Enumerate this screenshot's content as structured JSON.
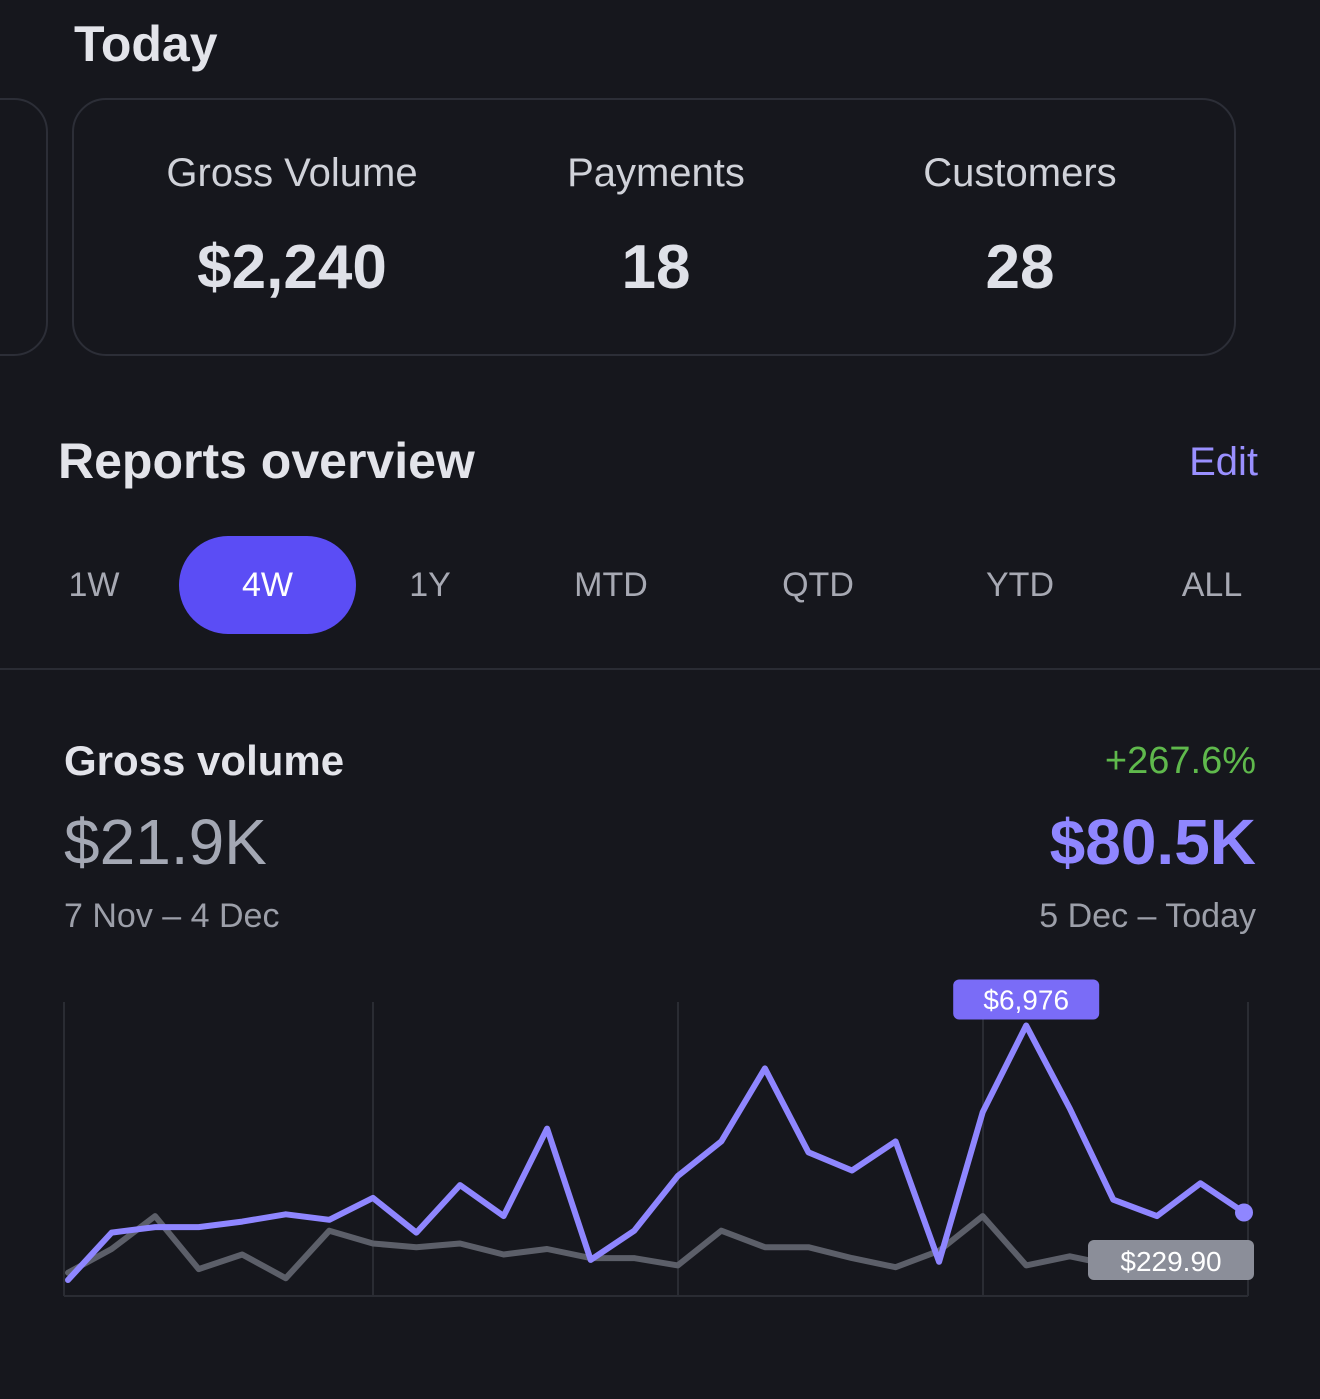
{
  "today": {
    "title": "Today",
    "stats": [
      {
        "label": "Gross Volume",
        "value": "$2,240"
      },
      {
        "label": "Payments",
        "value": "18"
      },
      {
        "label": "Customers",
        "value": "28"
      }
    ]
  },
  "reports": {
    "title": "Reports overview",
    "edit_label": "Edit",
    "ranges": [
      "1W",
      "4W",
      "1Y",
      "MTD",
      "QTD",
      "YTD",
      "ALL"
    ],
    "active_range": "4W"
  },
  "gross_volume": {
    "title": "Gross volume",
    "change": "+267.6%",
    "previous_value": "$21.9K",
    "previous_range": "7 Nov – 4 Dec",
    "current_value": "$80.5K",
    "current_range": "5 Dec – Today",
    "peak_label": "$6,976",
    "end_label": "$229.90"
  },
  "colors": {
    "accent": "#5b4df5",
    "current_series": "#8f86ff",
    "previous_series": "#5c5f69",
    "positive": "#5fb94c",
    "background": "#16171d"
  },
  "chart_data": {
    "type": "line",
    "x": [
      1,
      2,
      3,
      4,
      5,
      6,
      7,
      8,
      9,
      10,
      11,
      12,
      13,
      14,
      15,
      16,
      17,
      18,
      19,
      20,
      21,
      22,
      23,
      24,
      25,
      26,
      27,
      28
    ],
    "ylim": [
      0,
      7400
    ],
    "series": [
      {
        "values": [
          0,
          1300,
          1450,
          1450,
          1600,
          1800,
          1650,
          2250,
          1300,
          2600,
          1750,
          4150,
          550,
          1350,
          2850,
          3800,
          5800,
          3500,
          3000,
          3800,
          500,
          4600,
          6976,
          4700,
          2200,
          1750,
          2650,
          1850
        ]
      },
      {
        "values": [
          200,
          850,
          1750,
          300,
          700,
          50,
          1350,
          1000,
          900,
          1000,
          700,
          850,
          600,
          600,
          400,
          1350,
          900,
          900,
          600,
          350,
          800,
          1750,
          400,
          650,
          400,
          200,
          100,
          229.9
        ]
      }
    ]
  }
}
